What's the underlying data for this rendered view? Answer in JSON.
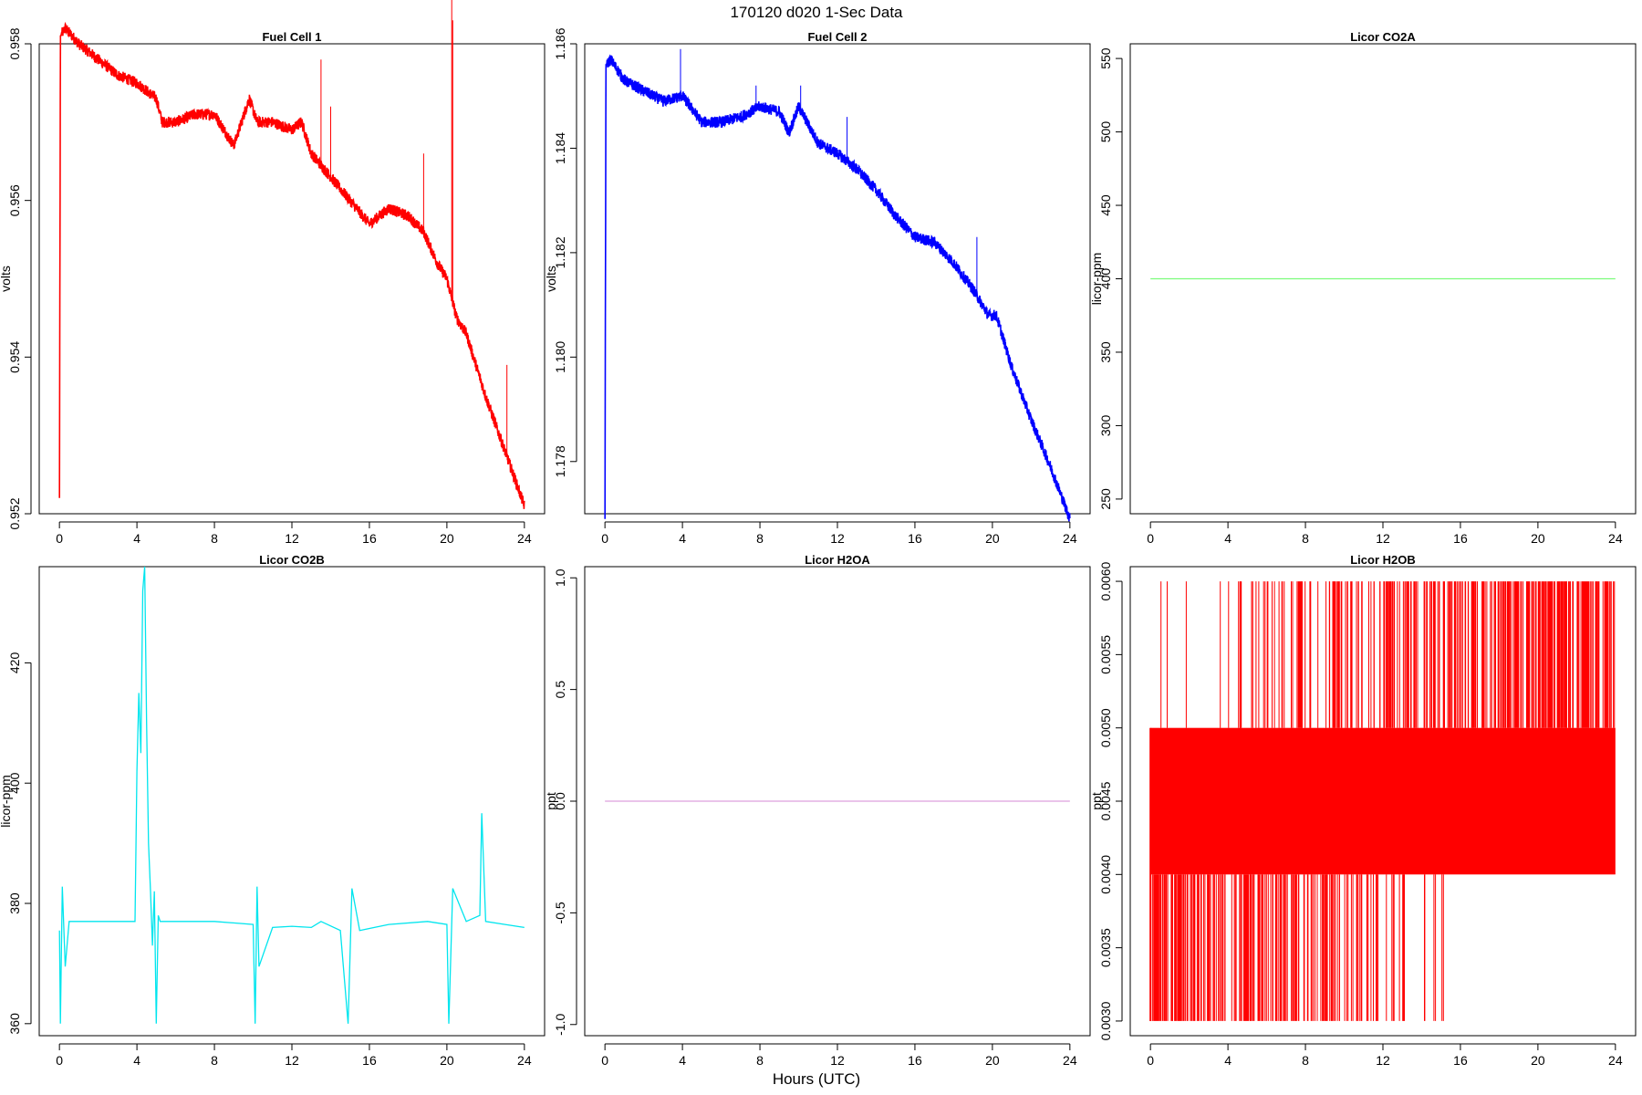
{
  "figure": {
    "title": "170120   d020   1-Sec Data",
    "xlabel": "Hours (UTC)"
  },
  "chart_data": [
    {
      "type": "line",
      "title": "Fuel Cell 1",
      "ylabel": "volts",
      "color": "#ff0000",
      "xlim": [
        0,
        24
      ],
      "ylim": [
        0.952,
        0.958
      ],
      "xticks": [
        0,
        4,
        8,
        12,
        16,
        20,
        24
      ],
      "yticks": [
        "0.952",
        "0.954",
        "0.956",
        "0.958"
      ],
      "x": [
        0,
        0.05,
        0.3,
        1,
        2,
        3,
        4,
        5,
        5.3,
        6,
        7,
        8,
        9,
        9.8,
        10.2,
        11,
        12,
        12.5,
        13,
        14,
        15,
        16,
        17,
        18,
        18.8,
        19.5,
        20,
        20.5,
        21,
        22,
        23,
        24
      ],
      "y": [
        0.9522,
        0.9581,
        0.9582,
        0.958,
        0.9578,
        0.9576,
        0.9575,
        0.9573,
        0.957,
        0.957,
        0.9571,
        0.9571,
        0.9567,
        0.9573,
        0.957,
        0.957,
        0.9569,
        0.957,
        0.9566,
        0.9563,
        0.956,
        0.9557,
        0.9559,
        0.9558,
        0.9556,
        0.9552,
        0.955,
        0.9545,
        0.9543,
        0.9535,
        0.9528,
        0.9521
      ]
    },
    {
      "type": "line",
      "title": "Fuel Cell 2",
      "ylabel": "volts",
      "color": "#0000ff",
      "xlim": [
        0,
        24
      ],
      "ylim": [
        1.177,
        1.186
      ],
      "xticks": [
        0,
        4,
        8,
        12,
        16,
        20,
        24
      ],
      "yticks": [
        "1.178",
        "1.180",
        "1.182",
        "1.184",
        "1.186"
      ],
      "x": [
        0,
        0.05,
        0.3,
        1,
        2,
        3,
        4,
        5,
        6,
        7,
        8,
        9,
        9.5,
        10,
        11,
        12,
        13,
        14,
        15,
        16,
        17,
        18,
        19,
        19.8,
        20.2,
        21,
        22,
        23,
        24
      ],
      "y": [
        1.1769,
        1.1856,
        1.1857,
        1.1853,
        1.1851,
        1.1849,
        1.185,
        1.1845,
        1.1845,
        1.1846,
        1.1848,
        1.1847,
        1.1843,
        1.1848,
        1.1841,
        1.1839,
        1.1836,
        1.1832,
        1.1827,
        1.1823,
        1.1822,
        1.1818,
        1.1813,
        1.1808,
        1.1808,
        1.1798,
        1.1788,
        1.1779,
        1.1769
      ]
    },
    {
      "type": "line",
      "title": "Licor CO2A",
      "ylabel": "licor-ppm",
      "color": "#7cfc7c",
      "xlim": [
        0,
        24
      ],
      "ylim": [
        240,
        560
      ],
      "xticks": [
        0,
        4,
        8,
        12,
        16,
        20,
        24
      ],
      "yticks": [
        "250",
        "300",
        "350",
        "400",
        "450",
        "500",
        "550"
      ],
      "x": [
        0,
        24
      ],
      "y": [
        400,
        400
      ]
    },
    {
      "type": "line",
      "title": "Licor CO2B",
      "ylabel": "licor-ppm",
      "color": "#00e5ee",
      "xlim": [
        0,
        24
      ],
      "ylim": [
        358,
        436
      ],
      "xticks": [
        0,
        4,
        8,
        12,
        16,
        20,
        24
      ],
      "yticks": [
        "360",
        "380",
        "400",
        "420"
      ],
      "x": [
        0,
        0.05,
        0.15,
        0.3,
        0.5,
        3.9,
        4.0,
        4.1,
        4.2,
        4.3,
        4.4,
        4.5,
        4.6,
        4.7,
        4.8,
        4.9,
        5.0,
        5.1,
        5.2,
        6,
        8,
        10,
        10.1,
        10.2,
        10.3,
        11,
        12,
        13,
        13.5,
        14.5,
        14.9,
        15.1,
        15.5,
        17,
        19,
        20,
        20.1,
        20.3,
        21,
        21.7,
        21.8,
        22,
        23,
        24
      ],
      "y": [
        375.5,
        360,
        382.8,
        369.5,
        377,
        377,
        402,
        415,
        405,
        432,
        436,
        410,
        390,
        382,
        373,
        382,
        360,
        378,
        377,
        377,
        377,
        376.5,
        360,
        382.8,
        369.5,
        376,
        376.2,
        376,
        377,
        375.5,
        360,
        382.5,
        375.5,
        376.5,
        377,
        376.5,
        360,
        382.5,
        377,
        378,
        395,
        377,
        376.5,
        376
      ]
    },
    {
      "type": "line",
      "title": "Licor H2OA",
      "ylabel": "ppt",
      "color": "#dda0dd",
      "xlim": [
        0,
        24
      ],
      "ylim": [
        -1.05,
        1.05
      ],
      "xticks": [
        0,
        4,
        8,
        12,
        16,
        20,
        24
      ],
      "yticks": [
        "-1.0",
        "-0.5",
        "0.0",
        "0.5",
        "1.0"
      ],
      "x": [
        0,
        24
      ],
      "y": [
        0,
        0
      ]
    },
    {
      "type": "line",
      "title": "Licor H2OB",
      "ylabel": "ppt",
      "color": "#ff0000",
      "xlim": [
        0,
        24
      ],
      "ylim": [
        0.0029,
        0.0061
      ],
      "xticks": [
        0,
        4,
        8,
        12,
        16,
        20,
        24
      ],
      "yticks": [
        "0.0030",
        "0.0035",
        "0.0040",
        "0.0045",
        "0.0050",
        "0.0055",
        "0.0060"
      ],
      "band": [
        0.004,
        0.005
      ],
      "quantized_levels": [
        0.003,
        0.004,
        0.005,
        0.006
      ]
    }
  ]
}
